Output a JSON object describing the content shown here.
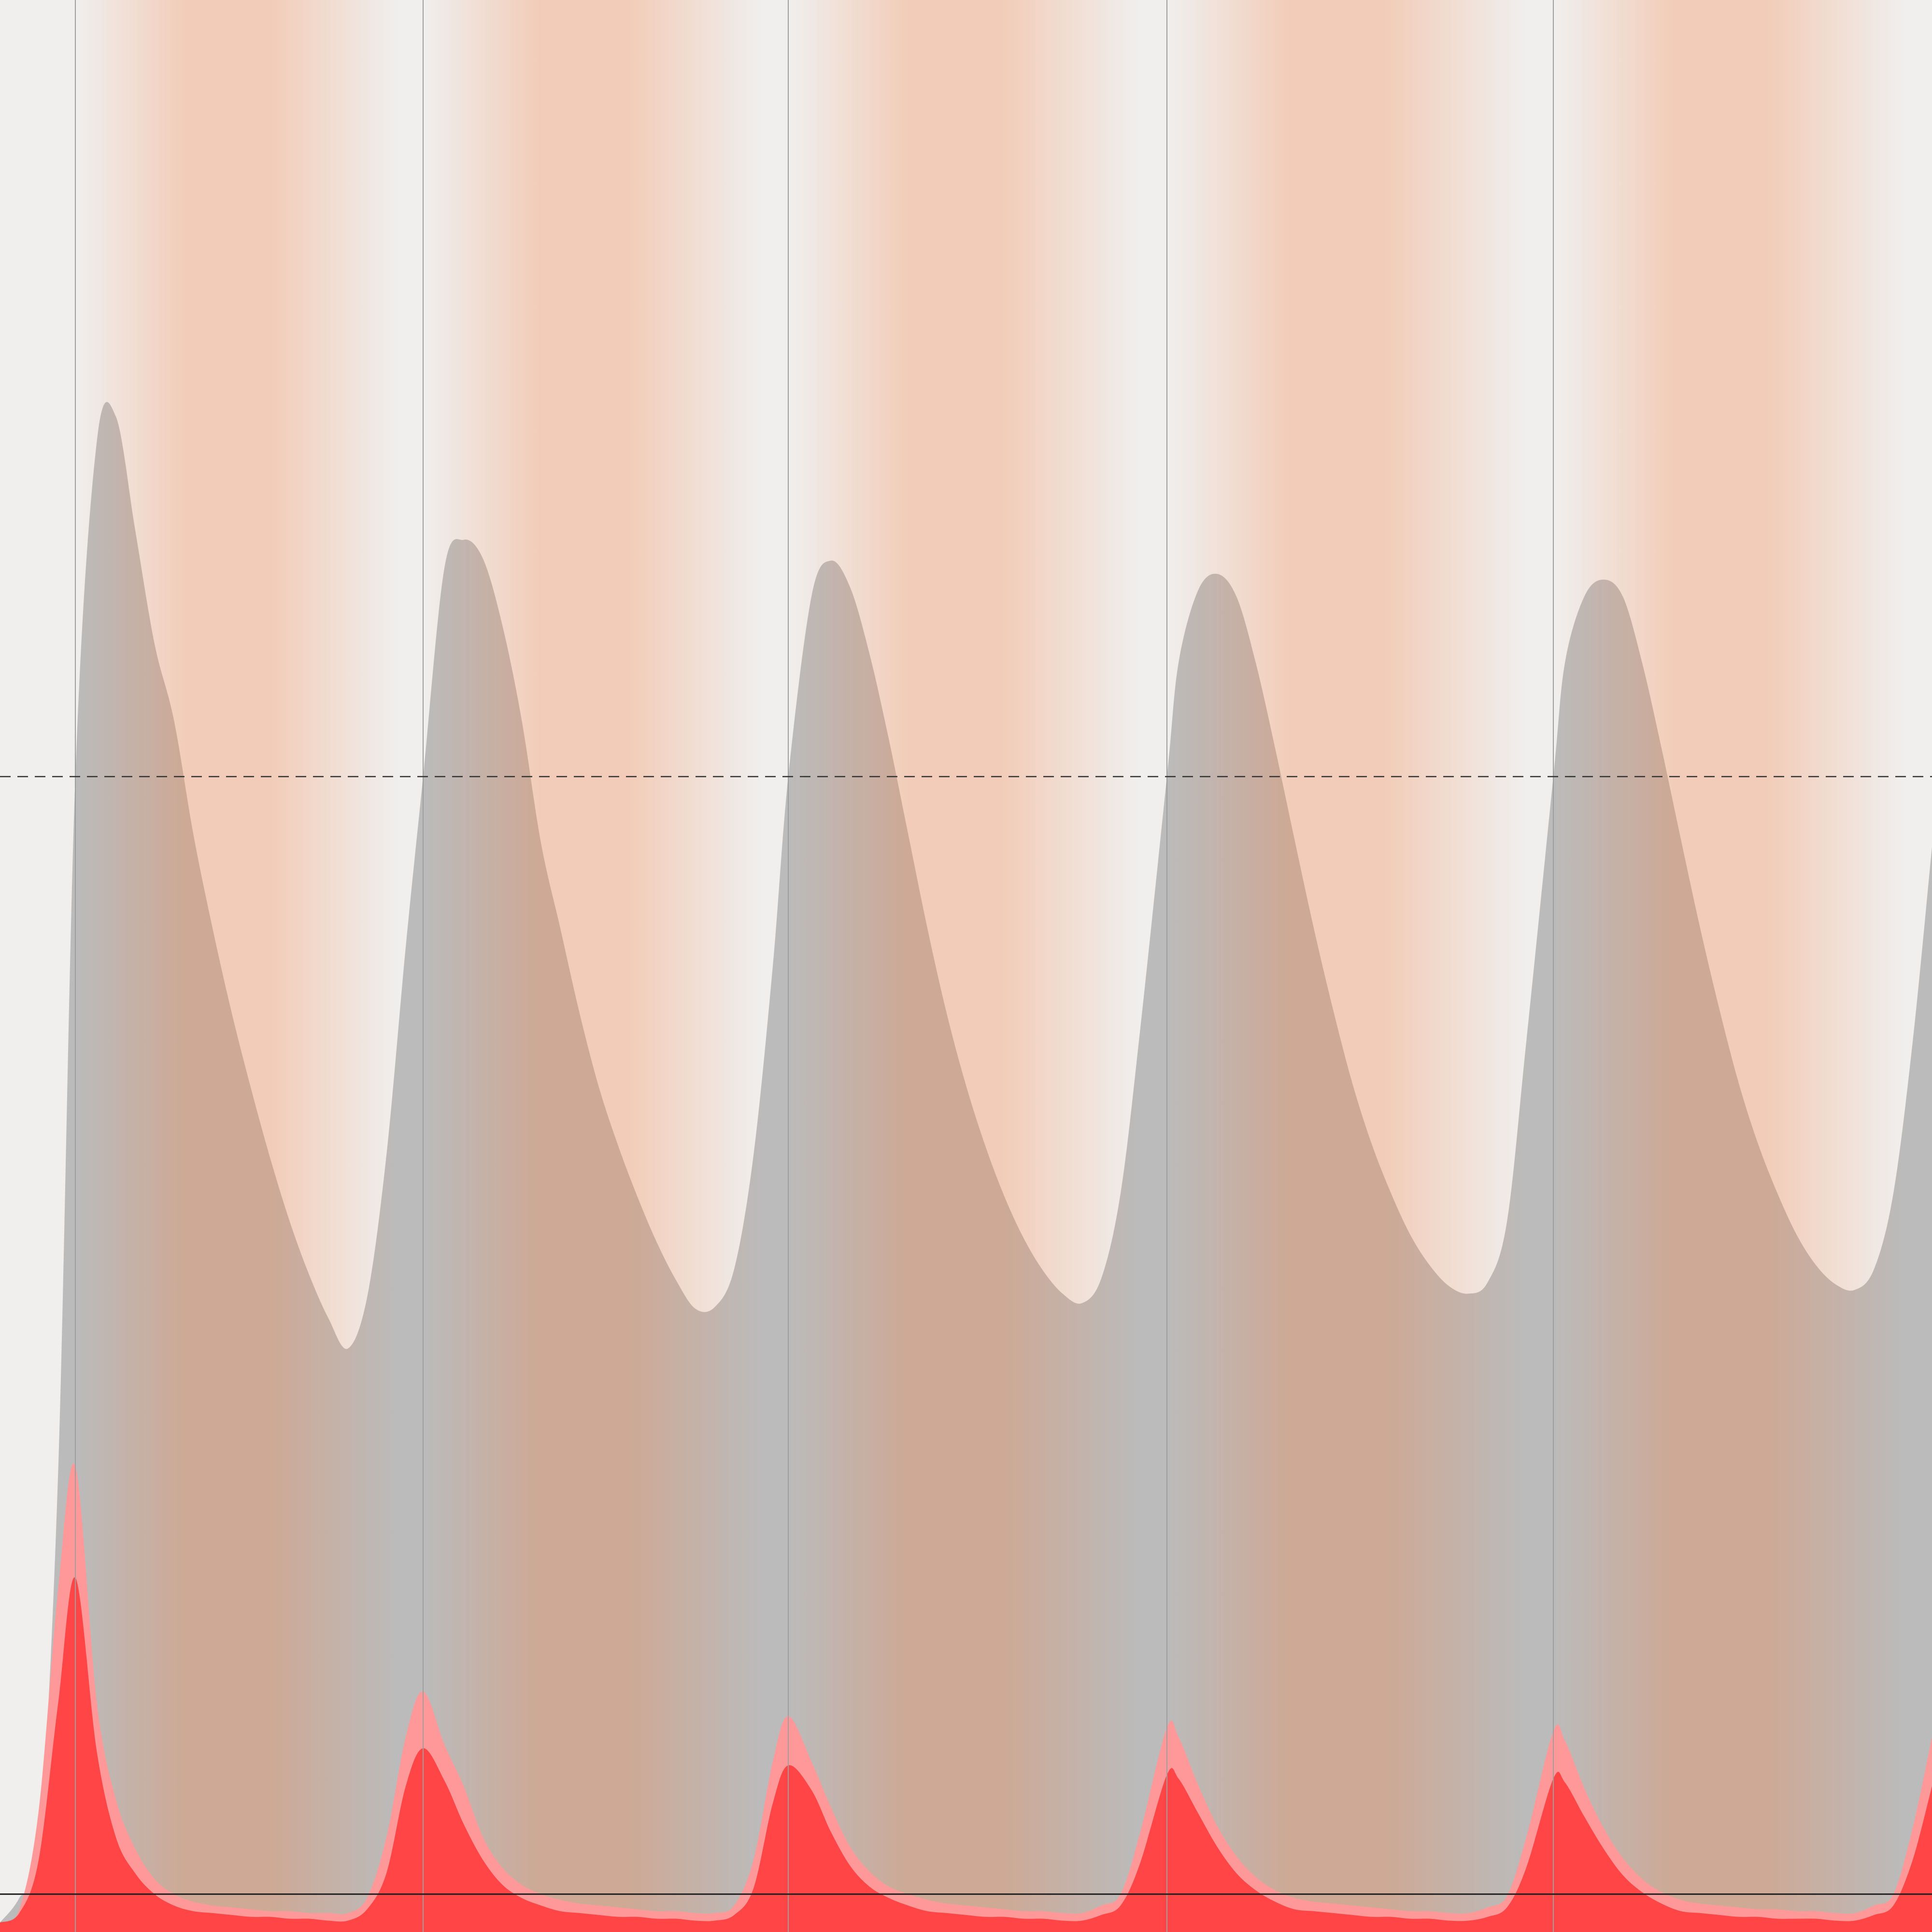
{
  "chart_data": {
    "type": "area",
    "x": [
      0,
      1,
      2,
      3,
      3.9,
      5,
      6,
      7,
      8,
      9,
      10,
      11,
      12,
      13,
      14,
      15,
      16,
      17,
      18,
      19,
      20,
      21,
      21.9,
      23,
      24,
      25,
      26,
      27,
      28,
      29,
      30,
      31,
      32,
      33,
      34,
      35,
      36,
      37,
      38,
      39,
      40,
      40.8,
      42,
      43,
      44,
      45,
      46,
      47,
      48,
      49,
      50,
      51,
      52,
      53,
      54,
      55,
      56,
      57,
      58,
      59,
      60.4,
      61,
      62,
      63,
      64,
      65,
      66,
      67,
      68,
      69,
      70,
      71,
      72,
      73,
      74,
      75,
      76,
      77,
      78,
      79,
      80.4,
      81,
      82,
      83,
      84,
      85,
      86,
      87,
      88,
      89,
      90,
      91,
      92,
      93,
      94,
      95,
      96,
      97,
      98,
      99,
      100
    ],
    "series": [
      {
        "color": "#bbbbbb",
        "values": [
          -1.5,
          -0.2,
          2.4,
          22,
          59,
          76.6,
          78,
          72,
          66,
          62,
          56,
          51,
          46.5,
          42.5,
          38.8,
          35.5,
          32.7,
          30.4,
          28.8,
          31.5,
          39,
          50,
          59,
          70,
          71.5,
          70.5,
          67,
          62,
          55.5,
          51,
          46.5,
          42.6,
          39.5,
          36.8,
          34.4,
          32.4,
          30.9,
          31,
          33,
          39,
          49,
          59,
          68.5,
          70.4,
          69,
          65.5,
          61,
          56,
          51,
          46.5,
          42.7,
          39.5,
          36.8,
          34.6,
          32.9,
          31.7,
          31.2,
          32.5,
          37,
          45.5,
          59,
          65,
          68.8,
          69.7,
          68.5,
          65,
          60.5,
          55.7,
          51,
          46.7,
          42.8,
          39.6,
          37,
          34.8,
          33.2,
          32.1,
          31.7,
          32.3,
          35.5,
          45,
          59,
          65,
          68.5,
          69.4,
          68.5,
          65,
          60.5,
          55.7,
          51,
          46.7,
          42.8,
          39.6,
          37,
          34.8,
          33.2,
          32.2,
          31.9,
          33,
          37,
          45,
          55.3
        ]
      },
      {
        "color": "#ff9999",
        "values": [
          -1.5,
          -0.8,
          4.4,
          16,
          22.6,
          10.2,
          5,
          2.4,
          0.8,
          0,
          -0.4,
          -0.6,
          -0.7,
          -0.8,
          -0.9,
          -0.9,
          -1,
          -1,
          -1,
          -0.2,
          3,
          8.3,
          10.7,
          7.9,
          5.7,
          3,
          1.4,
          0.5,
          0,
          -0.3,
          -0.5,
          -0.6,
          -0.7,
          -0.8,
          -0.9,
          -0.9,
          -1,
          -1,
          -0.6,
          1.8,
          7,
          9.4,
          7,
          4.6,
          2.5,
          1.2,
          0.4,
          0,
          -0.3,
          -0.5,
          -0.6,
          -0.7,
          -0.8,
          -0.9,
          -0.9,
          -1,
          -1,
          -0.6,
          0,
          3.2,
          8.8,
          8.3,
          5.8,
          3.6,
          2,
          0.9,
          0.2,
          -0.2,
          -0.4,
          -0.5,
          -0.6,
          -0.7,
          -0.8,
          -0.9,
          -0.9,
          -1,
          -1,
          -0.7,
          -0.1,
          3,
          8.6,
          8.1,
          5.6,
          3.5,
          1.9,
          0.8,
          0.1,
          -0.3,
          -0.5,
          -0.6,
          -0.7,
          -0.8,
          -0.8,
          -0.9,
          -0.9,
          -1,
          -1,
          -0.6,
          0,
          3.5,
          8.3
        ]
      },
      {
        "color": "#ff4545",
        "values": [
          -1.5,
          -1,
          1.8,
          10,
          16.7,
          7.6,
          3,
          1.1,
          0,
          -0.6,
          -0.9,
          -1,
          -1.1,
          -1.2,
          -1.2,
          -1.3,
          -1.3,
          -1.4,
          -1.4,
          -0.8,
          1.1,
          5.7,
          7.7,
          6,
          3.7,
          1.8,
          0.5,
          -0.2,
          -0.6,
          -0.9,
          -1,
          -1.1,
          -1.2,
          -1.2,
          -1.3,
          -1.3,
          -1.4,
          -1.4,
          -1.1,
          0.3,
          4.8,
          6.8,
          5.5,
          3.3,
          1.5,
          0.4,
          -0.2,
          -0.6,
          -0.9,
          -1,
          -1.1,
          -1.2,
          -1.2,
          -1.3,
          -1.3,
          -1.4,
          -1.4,
          -1.1,
          -0.6,
          1.6,
          6.3,
          6.1,
          4.3,
          2.5,
          1.1,
          0.2,
          -0.4,
          -0.8,
          -0.9,
          -1,
          -1.1,
          -1.2,
          -1.2,
          -1.3,
          -1.3,
          -1.4,
          -1.4,
          -1.2,
          -0.7,
          1.4,
          6.1,
          5.9,
          4.1,
          2.4,
          1,
          0.1,
          -0.5,
          -0.9,
          -1,
          -1.1,
          -1.2,
          -1.2,
          -1.3,
          -1.3,
          -1.3,
          -1.4,
          -1.4,
          -1.1,
          -0.6,
          1.8,
          5.7
        ]
      }
    ],
    "bands": [
      [
        3.9,
        21.9
      ],
      [
        21.9,
        40.8
      ],
      [
        40.8,
        60.4
      ],
      [
        60.4,
        80.4
      ],
      [
        80.4,
        100
      ]
    ],
    "band_color": "#f68245",
    "band_opacity": 0.32,
    "vlines": [
      3.9,
      21.9,
      40.8,
      60.4,
      80.4
    ],
    "reference_lines": [
      {
        "value": 59,
        "style": "dashed"
      },
      {
        "value": 0,
        "style": "solid"
      }
    ],
    "xlim": [
      0,
      100
    ],
    "ylim": [
      -2,
      100
    ]
  }
}
